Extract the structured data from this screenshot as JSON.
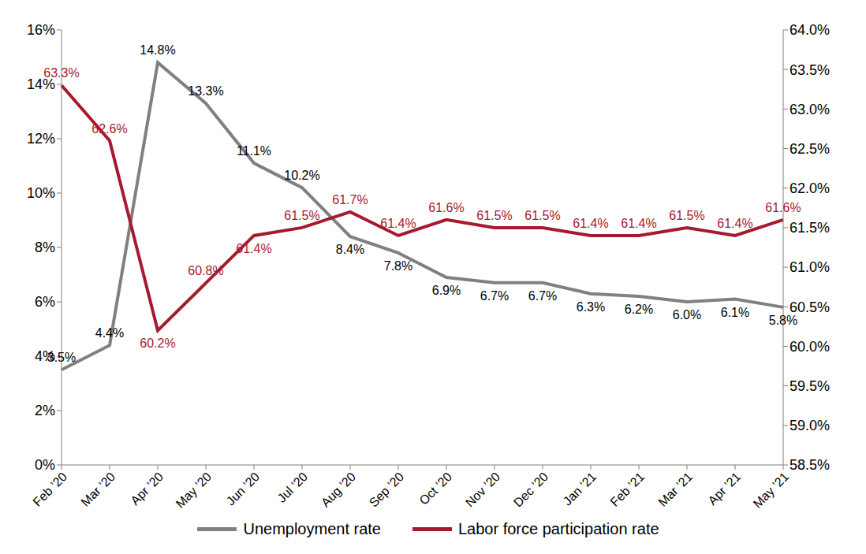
{
  "chart_data": {
    "type": "line",
    "categories": [
      "Feb ’20",
      "Mar ’20",
      "Apr ’20",
      "May ’20",
      "Jun ’20",
      "Jul ’20",
      "Aug ’20",
      "Sep ’20",
      "Oct ’20",
      "Nov ’20",
      "Dec ’20",
      "Jan ’21",
      "Feb ’21",
      "Mar ’21",
      "Apr ’21",
      "May ’21"
    ],
    "series": [
      {
        "name": "Unemployment rate",
        "color": "#808080",
        "axis": "y",
        "values": [
          3.5,
          4.4,
          14.8,
          13.3,
          11.1,
          10.2,
          8.4,
          7.8,
          6.9,
          6.7,
          6.7,
          6.3,
          6.2,
          6.0,
          6.1,
          5.8
        ],
        "value_labels": [
          "3.5%",
          "4.4%",
          "14.8%",
          "13.3%",
          "11.1%",
          "10.2%",
          "8.4%",
          "7.8%",
          "6.9%",
          "6.7%",
          "6.7%",
          "6.3%",
          "6.2%",
          "6.0%",
          "6.1%",
          "5.8%"
        ]
      },
      {
        "name": "Labor force participation rate",
        "color": "#a6192e",
        "axis": "y2",
        "values": [
          63.3,
          62.6,
          60.2,
          60.8,
          61.4,
          61.5,
          61.7,
          61.4,
          61.6,
          61.5,
          61.5,
          61.4,
          61.4,
          61.5,
          61.4,
          61.6
        ],
        "value_labels": [
          "63.3%",
          "62.6%",
          "60.2%",
          "60.8%",
          "61.4%",
          "61.5%",
          "61.7%",
          "61.4%",
          "61.6%",
          "61.5%",
          "61.5%",
          "61.4%",
          "61.4%",
          "61.5%",
          "61.4%",
          "61.6%"
        ]
      }
    ],
    "ylim": [
      0,
      16
    ],
    "yticks": [
      {
        "value": 0,
        "label": "0%"
      },
      {
        "value": 2,
        "label": "2%"
      },
      {
        "value": 4,
        "label": "4%"
      },
      {
        "value": 6,
        "label": "6%"
      },
      {
        "value": 8,
        "label": "8%"
      },
      {
        "value": 10,
        "label": "10%"
      },
      {
        "value": 12,
        "label": "12%"
      },
      {
        "value": 14,
        "label": "14%"
      },
      {
        "value": 16,
        "label": "16%"
      }
    ],
    "y2lim": [
      58.5,
      64.0
    ],
    "y2ticks": [
      {
        "value": 58.5,
        "label": "58.5%"
      },
      {
        "value": 59.0,
        "label": "59.0%"
      },
      {
        "value": 59.5,
        "label": "59.5%"
      },
      {
        "value": 60.0,
        "label": "60.0%"
      },
      {
        "value": 60.5,
        "label": "60.5%"
      },
      {
        "value": 61.0,
        "label": "61.0%"
      },
      {
        "value": 61.5,
        "label": "61.5%"
      },
      {
        "value": 62.0,
        "label": "62.0%"
      },
      {
        "value": 62.5,
        "label": "62.5%"
      },
      {
        "value": 63.0,
        "label": "63.0%"
      },
      {
        "value": 63.5,
        "label": "63.5%"
      },
      {
        "value": 64.0,
        "label": "64.0%"
      }
    ],
    "grid": false,
    "legend": "bottom",
    "data_labels": true
  }
}
